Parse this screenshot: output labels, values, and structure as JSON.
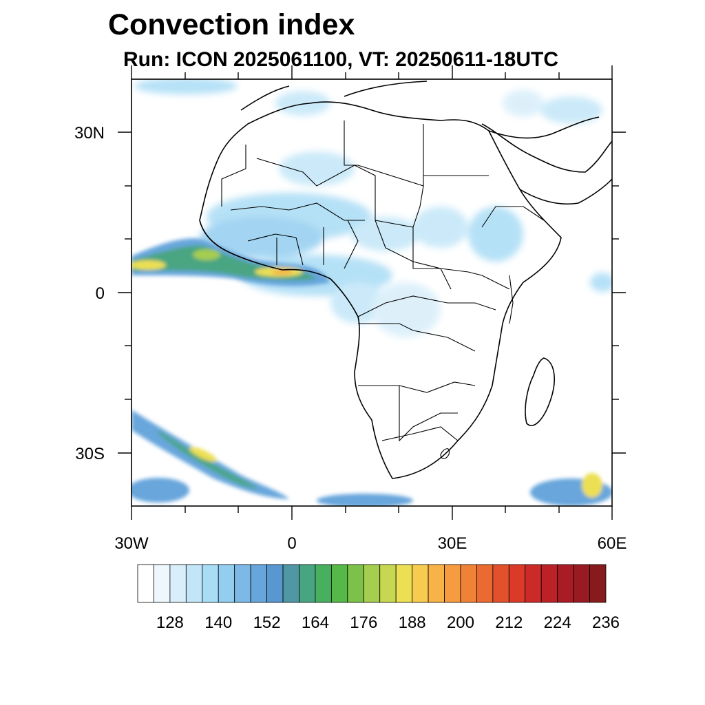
{
  "title": "Convection index",
  "subtitle": "Run: ICON 2025061100,  VT: 20250611-18UTC",
  "lat_labels": [
    "30N",
    "0",
    "30S"
  ],
  "lon_labels": [
    "30W",
    "0",
    "30E",
    "60E"
  ],
  "colorbar": {
    "colors": [
      "#ffffff",
      "#eef7fc",
      "#d8eefa",
      "#c2e6f8",
      "#a9dcf5",
      "#93cef0",
      "#7db9e6",
      "#67a6dc",
      "#5897cf",
      "#4f97a5",
      "#48a582",
      "#47b05f",
      "#55b847",
      "#7cc24a",
      "#a5cd4f",
      "#c8d752",
      "#ecdf53",
      "#f7cb4f",
      "#f7b347",
      "#f69b3f",
      "#f08238",
      "#ea6a31",
      "#e2512b",
      "#da3a27",
      "#cc2a28",
      "#bb2127",
      "#aa1c25",
      "#981a22",
      "#861a1d"
    ],
    "labels": [
      "128",
      "140",
      "152",
      "164",
      "176",
      "188",
      "200",
      "212",
      "224",
      "236"
    ]
  }
}
